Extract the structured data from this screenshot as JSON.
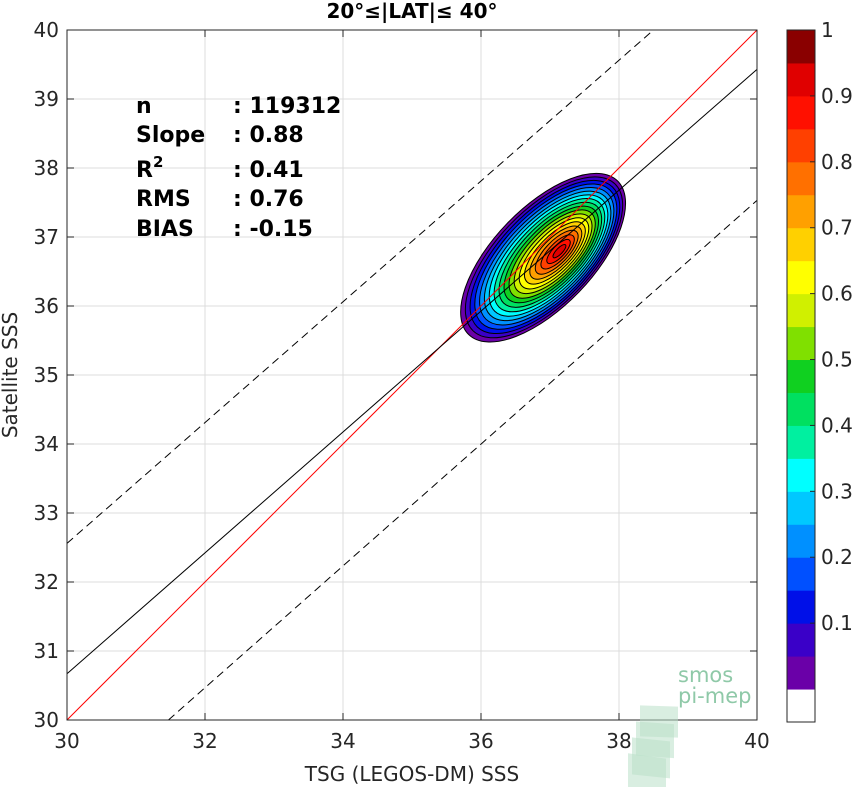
{
  "chart_data": {
    "type": "contour",
    "title": "20°≤|LAT|≤ 40°",
    "xlabel": "TSG (LEGOS-DM) SSS",
    "ylabel": "Satellite SSS",
    "xlim": [
      30,
      40
    ],
    "ylim": [
      30,
      40
    ],
    "xticks": [
      "30",
      "32",
      "34",
      "36",
      "38",
      "40"
    ],
    "yticks": [
      "30",
      "31",
      "32",
      "33",
      "34",
      "35",
      "36",
      "37",
      "38",
      "39",
      "40"
    ],
    "grid": true,
    "stats": [
      {
        "label": "n",
        "value": ": 119312"
      },
      {
        "label": "Slope",
        "value": ": 0.88"
      },
      {
        "label": "R",
        "sup": "2",
        "value": ": 0.41"
      },
      {
        "label": "RMS",
        "value": ": 0.76"
      },
      {
        "label": "BIAS",
        "value": ": -0.15"
      }
    ],
    "lines": [
      {
        "name": "one-to-one",
        "color": "#ff0000",
        "x": [
          30,
          40
        ],
        "y": [
          30,
          40
        ],
        "dash": false
      },
      {
        "name": "regression",
        "color": "#000000",
        "x": [
          30,
          40
        ],
        "y": [
          30.67,
          39.43
        ],
        "dash": false
      },
      {
        "name": "upper-bound",
        "color": "#000000",
        "x": [
          30,
          38.5
        ],
        "y": [
          32.56,
          40
        ],
        "dash": true
      },
      {
        "name": "lower-bound",
        "color": "#000000",
        "x": [
          31.47,
          40
        ],
        "y": [
          30,
          37.53
        ],
        "dash": true
      }
    ],
    "density": {
      "center": [
        36.9,
        36.7
      ],
      "axis_angle_deg": 46,
      "levels": [
        0.05,
        0.1,
        0.15,
        0.2,
        0.25,
        0.3,
        0.35,
        0.4,
        0.45,
        0.5,
        0.55,
        0.6,
        0.65,
        0.7,
        0.75,
        0.8,
        0.85,
        0.9,
        0.95
      ]
    },
    "colorbar": {
      "ticks": [
        "0.1",
        "0.2",
        "0.3",
        "0.4",
        "0.5",
        "0.6",
        "0.7",
        "0.8",
        "0.9",
        "1"
      ],
      "tick_values": [
        0.1,
        0.2,
        0.3,
        0.4,
        0.5,
        0.6,
        0.7,
        0.8,
        0.9,
        1.0
      ],
      "colors": [
        "#ffffff",
        "#6a00a8",
        "#3a00c8",
        "#0010e8",
        "#0050ff",
        "#0090ff",
        "#00c8ff",
        "#00ffff",
        "#00f0a0",
        "#00e060",
        "#10d020",
        "#80e000",
        "#d0f000",
        "#ffff00",
        "#ffd000",
        "#ffa000",
        "#ff7000",
        "#ff4000",
        "#ff1000",
        "#e00000",
        "#8a0000"
      ]
    },
    "logo": {
      "line1": "smos",
      "line2": "pi-mep"
    }
  }
}
